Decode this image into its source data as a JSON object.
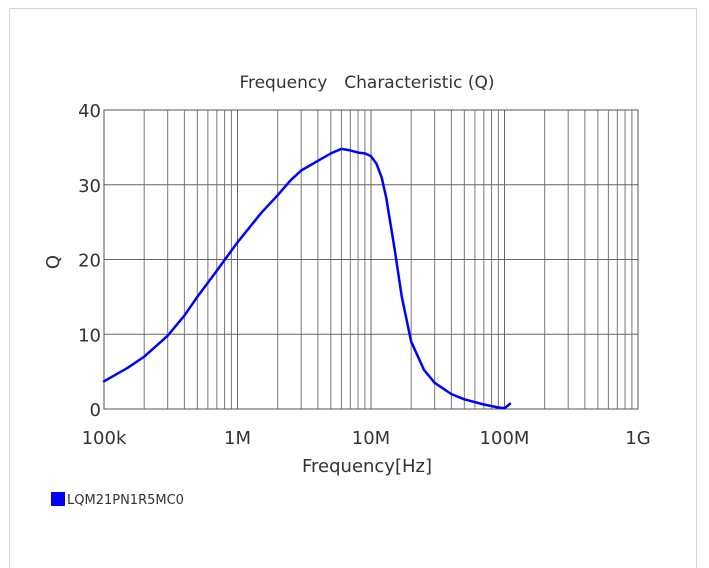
{
  "chart_data": {
    "type": "line",
    "title": "Frequency　Characteristic (Q)",
    "xlabel": "Frequency[Hz]",
    "ylabel": "Q",
    "xscale": "log",
    "xlim": [
      100000,
      1000000000
    ],
    "ylim": [
      0,
      40
    ],
    "x_ticks": [
      100000,
      1000000,
      10000000,
      100000000,
      1000000000
    ],
    "x_tick_labels": [
      "100k",
      "1M",
      "10M",
      "100M",
      "1G"
    ],
    "y_ticks": [
      0,
      10,
      20,
      30,
      40
    ],
    "y_tick_labels": [
      "0",
      "10",
      "20",
      "30",
      "40"
    ],
    "grid": true,
    "legend_position": "bottom-left",
    "series": [
      {
        "name": "LQM21PN1R5MC0",
        "color": "#0000ff",
        "x": [
          100000,
          150000,
          200000,
          300000,
          400000,
          500000,
          700000,
          1000000,
          1500000,
          2000000,
          2500000,
          3000000,
          4000000,
          5000000,
          6000000,
          7000000,
          8000000,
          9000000,
          10000000,
          11000000,
          12000000,
          13000000,
          15000000,
          17000000,
          20000000,
          25000000,
          30000000,
          40000000,
          50000000,
          70000000,
          90000000,
          100000000,
          110000000
        ],
        "y": [
          3.7,
          5.5,
          7.0,
          9.8,
          12.5,
          15.0,
          18.5,
          22.3,
          26.2,
          28.6,
          30.6,
          31.9,
          33.2,
          34.2,
          34.8,
          34.6,
          34.3,
          34.2,
          33.8,
          32.8,
          31.0,
          28.3,
          21.5,
          15.0,
          9.0,
          5.2,
          3.5,
          2.0,
          1.3,
          0.6,
          0.2,
          0.1,
          0.7
        ]
      }
    ]
  }
}
